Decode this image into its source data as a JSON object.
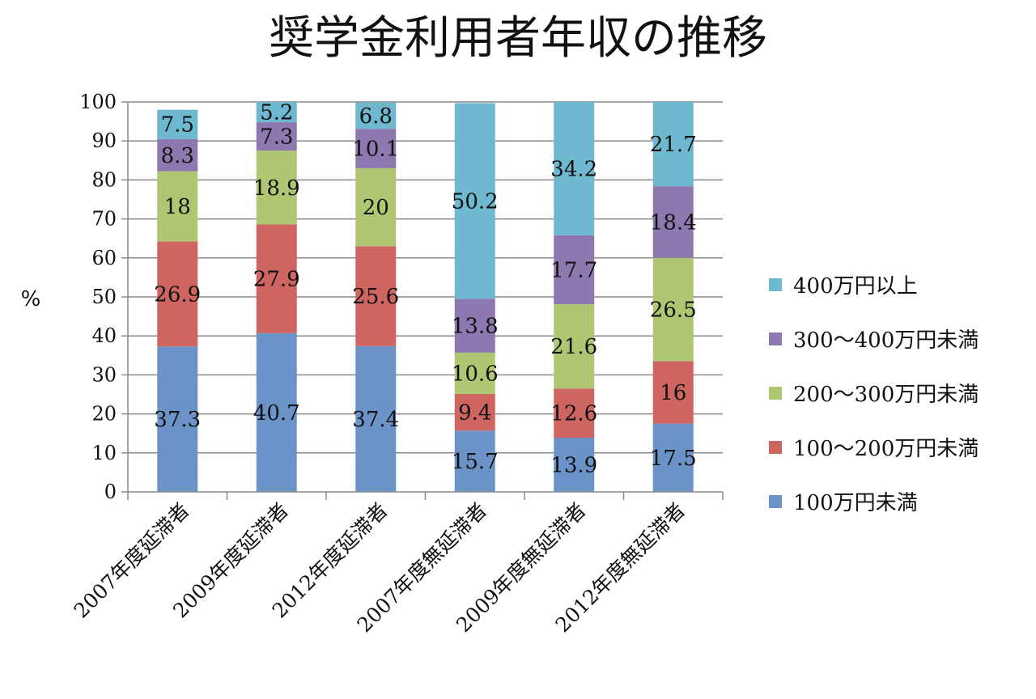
{
  "chart_data": {
    "type": "bar",
    "stacked": true,
    "title": "奨学金利用者年収の推移",
    "xlabel": "",
    "ylabel": "%",
    "ylim": [
      0,
      100
    ],
    "yticks": [
      "0",
      "10",
      "20",
      "30",
      "40",
      "50",
      "60",
      "70",
      "80",
      "90",
      "100"
    ],
    "grid": true,
    "legend_position": "right",
    "categories": [
      "2007年度延滞者",
      "2009年度延滞者",
      "2012年度延滞者",
      "2007年度無延滞者",
      "2009年度無延滞者",
      "2012年度無延滞者"
    ],
    "series": [
      {
        "name": "100万円未満",
        "color": "#6C93C8",
        "values": [
          37.3,
          40.7,
          37.4,
          15.7,
          13.9,
          17.5
        ]
      },
      {
        "name": "100〜200万円未満",
        "color": "#CE6561",
        "values": [
          26.9,
          27.9,
          25.6,
          9.4,
          12.6,
          16
        ]
      },
      {
        "name": "200〜300万円未満",
        "color": "#AFC772",
        "values": [
          18,
          18.9,
          20,
          10.6,
          21.6,
          26.5
        ]
      },
      {
        "name": "300〜400万円未満",
        "color": "#8E78B0",
        "values": [
          8.3,
          7.3,
          10.1,
          13.8,
          17.7,
          18.4
        ]
      },
      {
        "name": "400万円以上",
        "color": "#6FB9D0",
        "values": [
          7.5,
          5.2,
          6.8,
          50.2,
          34.2,
          21.7
        ]
      }
    ]
  }
}
